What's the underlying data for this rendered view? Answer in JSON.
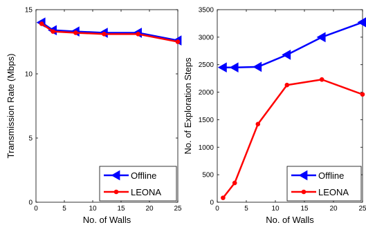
{
  "chart_data": [
    {
      "type": "line",
      "xlabel": "No. of Walls",
      "ylabel": "Transmission Rate (Mbps)",
      "xlim": [
        0,
        25
      ],
      "ylim": [
        0,
        15
      ],
      "xticks": [
        0,
        5,
        10,
        15,
        20,
        25
      ],
      "yticks": [
        0,
        5,
        10,
        15
      ],
      "grid": false,
      "legend_position": "bottom-right",
      "series": [
        {
          "name": "Offline",
          "color": "#0000ff",
          "marker": "triangle-left",
          "x": [
            1,
            3,
            7,
            12,
            18,
            25
          ],
          "y": [
            14.0,
            13.4,
            13.3,
            13.2,
            13.2,
            12.6
          ]
        },
        {
          "name": "LEONA",
          "color": "#ff0000",
          "marker": "dot",
          "x": [
            1,
            3,
            7,
            12,
            18,
            25
          ],
          "y": [
            13.9,
            13.3,
            13.2,
            13.1,
            13.1,
            12.5
          ]
        }
      ]
    },
    {
      "type": "line",
      "xlabel": "No. of Walls",
      "ylabel": "No. of Exploration Steps",
      "xlim": [
        0,
        25
      ],
      "ylim": [
        0,
        3500
      ],
      "xticks": [
        0,
        5,
        10,
        15,
        20,
        25
      ],
      "yticks": [
        0,
        500,
        1000,
        1500,
        2000,
        2500,
        3000,
        3500
      ],
      "grid": false,
      "legend_position": "bottom-right",
      "series": [
        {
          "name": "Offline",
          "color": "#0000ff",
          "marker": "triangle-left",
          "x": [
            1,
            3,
            7,
            12,
            18,
            25
          ],
          "y": [
            2450,
            2450,
            2460,
            2680,
            3000,
            3270
          ]
        },
        {
          "name": "LEONA",
          "color": "#ff0000",
          "marker": "dot",
          "x": [
            1,
            3,
            7,
            12,
            18,
            25
          ],
          "y": [
            80,
            350,
            1420,
            2130,
            2230,
            1960
          ]
        }
      ]
    }
  ]
}
